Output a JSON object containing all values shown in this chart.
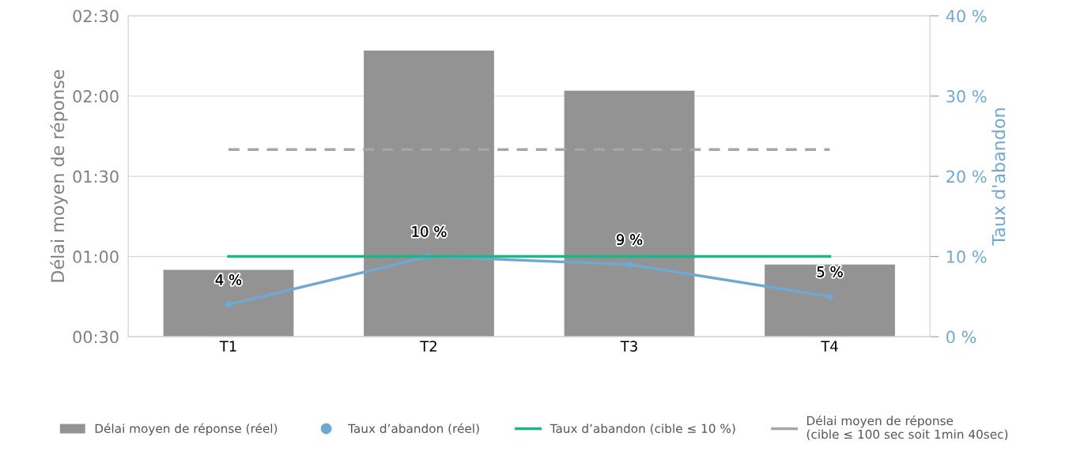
{
  "chart_data": {
    "type": "bar",
    "categories": [
      "T1",
      "T2",
      "T3",
      "T4"
    ],
    "ylabel": "Délai moyen de réponse",
    "y2label": "Taux d'abandon",
    "ylim": [
      30,
      150
    ],
    "yticks": [
      {
        "value": 30,
        "label": "00:30"
      },
      {
        "value": 60,
        "label": "01:00"
      },
      {
        "value": 90,
        "label": "01:30"
      },
      {
        "value": 120,
        "label": "02:00"
      },
      {
        "value": 150,
        "label": "02:30"
      }
    ],
    "y2lim": [
      0,
      40
    ],
    "y2ticks": [
      {
        "value": 0,
        "label": "0 %"
      },
      {
        "value": 10,
        "label": "10 %"
      },
      {
        "value": 20,
        "label": "20 %"
      },
      {
        "value": 30,
        "label": "30 %"
      },
      {
        "value": 40,
        "label": "40 %"
      }
    ],
    "grid": "y",
    "legend": "bottom",
    "series": [
      {
        "name": "Délai moyen de réponse (réel)",
        "color": "#939393",
        "values": [
          55,
          137,
          122,
          57
        ]
      },
      {
        "name": "Taux d’abandon (réel)",
        "type": "line",
        "axis": "y2",
        "color": "#6fa8d0",
        "marker": "circle",
        "values": [
          4,
          10,
          9,
          5
        ],
        "value_labels": [
          "4 %",
          "10 %",
          "9 %",
          "5 %"
        ]
      },
      {
        "name": "Taux d’abandon (cible ≤ 10 %)",
        "type": "line",
        "axis": "y2",
        "color": "#1fb58a",
        "marker": "none",
        "values": [
          10,
          10,
          10,
          10
        ]
      },
      {
        "name": "Délai moyen de réponse\n(cible ≤ 100 sec soit 1min 40sec)",
        "type": "line",
        "line_style": "dashed",
        "color": "#a6a6a6",
        "marker": "none",
        "values": [
          100,
          100,
          100,
          100
        ]
      }
    ]
  }
}
